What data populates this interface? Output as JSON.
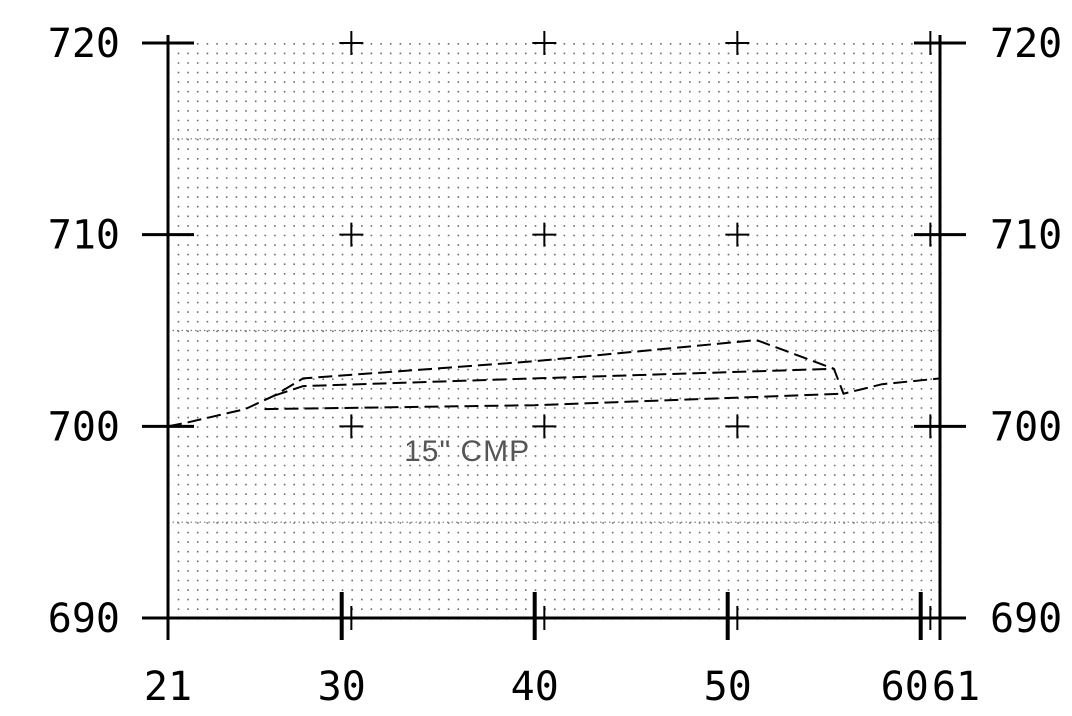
{
  "chart_data": {
    "type": "line",
    "title": "",
    "xlabel": "",
    "ylabel": "",
    "xlim": [
      21,
      61
    ],
    "ylim": [
      690,
      720
    ],
    "x_ticks": [
      21,
      30,
      40,
      50,
      60,
      61
    ],
    "x_tick_labels": [
      "21",
      "30",
      "40",
      "50",
      "60",
      "61"
    ],
    "y_ticks": [
      690,
      700,
      710,
      720
    ],
    "y_tick_labels": [
      "690",
      "700",
      "710",
      "720"
    ],
    "grid": "dotted",
    "annotation": "15\" CMP",
    "series": [
      {
        "style": "dashed",
        "x": [
          21,
          22,
          25,
          26.5,
          28,
          40,
          51.5,
          55.5,
          56,
          58,
          61
        ],
        "y": [
          700,
          700.2,
          700.9,
          701.6,
          702.5,
          703.4,
          704.5,
          703.0,
          701.7,
          702.2,
          702.5
        ]
      },
      {
        "style": "dashed",
        "x": [
          26.5,
          28,
          40,
          55.5
        ],
        "y": [
          701.6,
          702.1,
          702.5,
          703.0
        ]
      },
      {
        "style": "dashed",
        "x": [
          26,
          40,
          56
        ],
        "y": [
          700.9,
          701.1,
          701.7
        ]
      }
    ]
  }
}
